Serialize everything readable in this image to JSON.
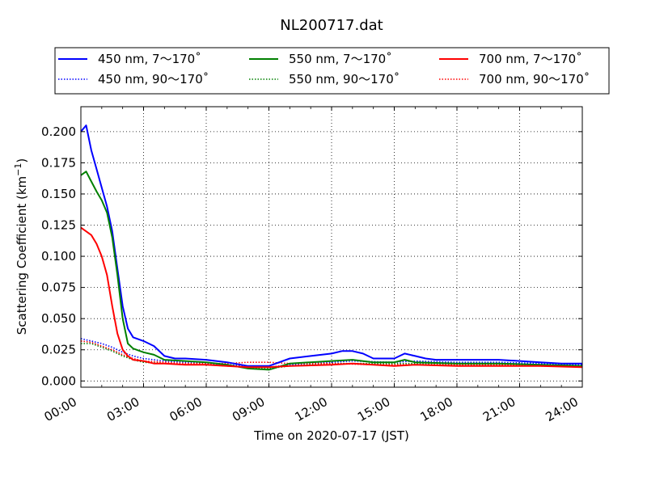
{
  "chart_data": {
    "type": "line",
    "title": "NL200717.dat",
    "xlabel": "Time on 2020-07-17 (JST)",
    "ylabel": "Scattering Coefficient (km",
    "ylabel_exponent": "−1",
    "ylabel_close": ")",
    "x_unit": "hours",
    "xlim": [
      0,
      24
    ],
    "ylim": [
      -0.005,
      0.22
    ],
    "grid": true,
    "grid_style": "dotted",
    "legend_position": "top-center",
    "legend_columns": 3,
    "x_tick_values": [
      0,
      3,
      6,
      9,
      12,
      15,
      18,
      21,
      24
    ],
    "x_tick_labels": [
      "00:00",
      "03:00",
      "06:00",
      "09:00",
      "12:00",
      "15:00",
      "18:00",
      "21:00",
      "24:00"
    ],
    "y_tick_values": [
      0.0,
      0.025,
      0.05,
      0.075,
      0.1,
      0.125,
      0.15,
      0.175,
      0.2
    ],
    "y_tick_labels": [
      "0.000",
      "0.025",
      "0.050",
      "0.075",
      "0.100",
      "0.125",
      "0.150",
      "0.175",
      "0.200"
    ],
    "series": [
      {
        "name": "450 nm, 7～170˚",
        "color": "#0000ff",
        "style": "solid",
        "x": [
          0,
          0.25,
          0.5,
          0.75,
          1.0,
          1.25,
          1.5,
          1.75,
          2.0,
          2.25,
          2.5,
          3.0,
          3.5,
          4.0,
          4.5,
          5,
          6,
          7,
          8,
          9,
          10,
          11,
          12,
          12.5,
          13,
          13.5,
          14,
          15,
          15.5,
          16,
          16.5,
          17,
          18,
          19,
          20,
          21,
          22,
          23,
          24
        ],
        "y": [
          0.2,
          0.205,
          0.185,
          0.17,
          0.155,
          0.14,
          0.12,
          0.09,
          0.06,
          0.042,
          0.035,
          0.032,
          0.028,
          0.02,
          0.018,
          0.018,
          0.017,
          0.015,
          0.012,
          0.012,
          0.018,
          0.02,
          0.022,
          0.024,
          0.024,
          0.022,
          0.018,
          0.018,
          0.022,
          0.02,
          0.018,
          0.017,
          0.017,
          0.017,
          0.017,
          0.016,
          0.015,
          0.014,
          0.014
        ]
      },
      {
        "name": "450 nm, 90～170˚",
        "color": "#0000ff",
        "style": "dotted",
        "x": [
          0,
          0.5,
          1.0,
          1.5,
          2.0,
          2.5,
          3,
          4,
          5,
          6,
          7,
          8,
          9,
          10,
          12,
          13,
          15,
          16,
          18,
          20,
          22,
          24
        ],
        "y": [
          0.034,
          0.032,
          0.03,
          0.027,
          0.023,
          0.02,
          0.018,
          0.016,
          0.015,
          0.014,
          0.013,
          0.012,
          0.011,
          0.013,
          0.015,
          0.016,
          0.015,
          0.016,
          0.015,
          0.015,
          0.014,
          0.013
        ]
      },
      {
        "name": "550 nm, 7～170˚",
        "color": "#008000",
        "style": "solid",
        "x": [
          0,
          0.25,
          0.5,
          0.75,
          1.0,
          1.25,
          1.5,
          1.75,
          2.0,
          2.25,
          2.5,
          3.0,
          3.5,
          4.0,
          5,
          6,
          7,
          8,
          9,
          10,
          12,
          13,
          14,
          15,
          15.5,
          16,
          18,
          20,
          22,
          24
        ],
        "y": [
          0.165,
          0.168,
          0.16,
          0.152,
          0.145,
          0.135,
          0.115,
          0.085,
          0.05,
          0.03,
          0.026,
          0.023,
          0.021,
          0.017,
          0.016,
          0.015,
          0.013,
          0.01,
          0.009,
          0.014,
          0.016,
          0.017,
          0.015,
          0.015,
          0.017,
          0.015,
          0.014,
          0.014,
          0.013,
          0.012
        ]
      },
      {
        "name": "550 nm, 90～170˚",
        "color": "#008000",
        "style": "dotted",
        "x": [
          0,
          0.5,
          1.0,
          1.5,
          2.0,
          2.5,
          3,
          4,
          5,
          6,
          7,
          8,
          9,
          10,
          12,
          14,
          16,
          18,
          20,
          22,
          24
        ],
        "y": [
          0.03,
          0.03,
          0.027,
          0.024,
          0.02,
          0.017,
          0.015,
          0.014,
          0.013,
          0.013,
          0.012,
          0.011,
          0.01,
          0.012,
          0.014,
          0.014,
          0.014,
          0.013,
          0.013,
          0.012,
          0.012
        ]
      },
      {
        "name": "700 nm, 7～170˚",
        "color": "#ff0000",
        "style": "solid",
        "x": [
          0,
          0.25,
          0.5,
          0.75,
          1.0,
          1.25,
          1.5,
          1.75,
          2.0,
          2.25,
          2.5,
          3.0,
          3.5,
          4.0,
          5,
          6,
          7,
          8,
          9,
          10,
          12,
          13,
          14,
          15,
          16,
          18,
          20,
          22,
          24
        ],
        "y": [
          0.123,
          0.12,
          0.117,
          0.11,
          0.1,
          0.085,
          0.06,
          0.038,
          0.025,
          0.02,
          0.017,
          0.016,
          0.014,
          0.014,
          0.013,
          0.013,
          0.012,
          0.011,
          0.011,
          0.012,
          0.013,
          0.014,
          0.013,
          0.012,
          0.013,
          0.012,
          0.012,
          0.012,
          0.011
        ]
      },
      {
        "name": "700 nm, 90～170˚",
        "color": "#ff0000",
        "style": "dotted",
        "x": [
          0,
          0.5,
          1.0,
          1.5,
          2.0,
          2.5,
          3,
          4,
          5,
          6,
          7,
          8,
          9,
          10,
          12,
          14,
          16,
          18,
          20,
          22,
          24
        ],
        "y": [
          0.032,
          0.031,
          0.028,
          0.025,
          0.021,
          0.018,
          0.016,
          0.015,
          0.014,
          0.014,
          0.014,
          0.015,
          0.015,
          0.014,
          0.014,
          0.013,
          0.013,
          0.013,
          0.013,
          0.012,
          0.012
        ]
      }
    ]
  }
}
